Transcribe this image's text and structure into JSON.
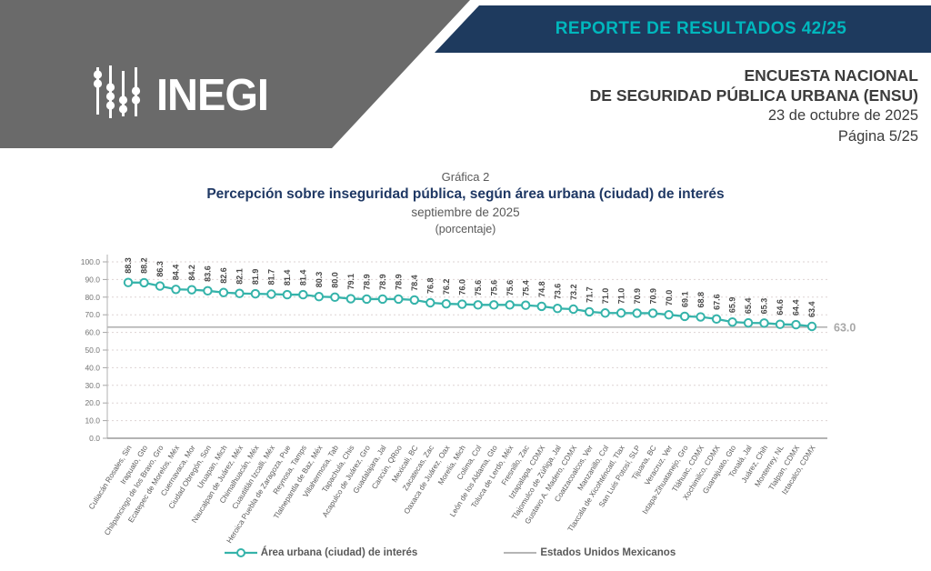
{
  "header": {
    "report_label": "REPORTE DE RESULTADOS 42/25",
    "logo_text": "INEGI",
    "title_line1": "ENCUESTA NACIONAL",
    "title_line2": "DE SEGURIDAD PÚBLICA URBANA (ENSU)",
    "date": "23 de octubre de 2025",
    "page": "Página 5/25"
  },
  "chart_title": {
    "label": "Gráfica 2",
    "title": "Percepción sobre inseguridad pública, según área urbana (ciudad) de interés",
    "subtitle": "septiembre de 2025",
    "unit": "(porcentaje)"
  },
  "colors": {
    "band_gray": "#6a6a6a",
    "banner_navy": "#1e3a5e",
    "banner_teal_text": "#00b7bd",
    "title_blue": "#1f3864",
    "series_teal": "#35b3aa",
    "national_gray": "#b5b5b5"
  },
  "chart_data": {
    "type": "line",
    "series_name": "Área urbana (ciudad) de interés",
    "categories": [
      "Culiacán Rosales, Sin",
      "Irapuato, Gto",
      "Chilpancingo de los Bravo, Gro",
      "Ecatepec de Morelos, Méx",
      "Cuernavaca, Mor",
      "Ciudad Obregón, Son",
      "Uruapan, Mich",
      "Naucalpan de Juárez, Méx",
      "Chimalhuacán, Méx",
      "Cuautitlán Izcalli, Méx",
      "Heroica Puebla de Zaragoza, Pue",
      "Reynosa, Tamps",
      "Tlalnepantla de Baz, Méx",
      "Villahermosa, Tab",
      "Tapachula, Chis",
      "Acapulco de Juárez, Gro",
      "Guadalajara, Jal",
      "Cancún, QRoo",
      "Mexicali, BC",
      "Zacatecas, Zac",
      "Oaxaca de Juárez, Oax",
      "Morelia, Mich",
      "Colima, Col",
      "León de los Aldama, Gto",
      "Toluca de Lerdo, Méx",
      "Fresnillo, Zac",
      "Iztapalapa, CDMX",
      "Tlajomulco de Zúñiga, Jal",
      "Gustavo A. Madero, CDMX",
      "Coatzacoalcos, Ver",
      "Manzanillo, Col",
      "Tlaxcala de Xicohténcatl, Tlax",
      "San Luis Potosí, SLP",
      "Tijuana, BC",
      "Veracruz, Ver",
      "Ixtapa-Zihuatanejo, Gro",
      "Tláhuac, CDMX",
      "Xochimilco, CDMX",
      "Guanajuato, Gto",
      "Tonalá, Jal",
      "Juárez, Chih",
      "Monterrey, NL",
      "Tlalpan, CDMX",
      "Iztacalco, CDMX"
    ],
    "values": [
      88.3,
      88.2,
      86.3,
      84.4,
      84.2,
      83.6,
      82.6,
      82.1,
      81.9,
      81.7,
      81.4,
      81.4,
      80.3,
      80.0,
      79.1,
      78.9,
      78.9,
      78.9,
      78.4,
      76.8,
      76.2,
      76.0,
      75.6,
      75.6,
      75.6,
      75.4,
      74.8,
      73.6,
      73.2,
      71.7,
      71.0,
      71.0,
      70.9,
      70.9,
      70.0,
      69.1,
      68.8,
      67.6,
      65.9,
      65.4,
      65.3,
      64.6,
      64.4,
      63.4
    ],
    "national": {
      "label": "Estados Unidos Mexicanos",
      "value": 63.0
    },
    "ylim": [
      0,
      100
    ],
    "ytick_step": 10,
    "grid": true,
    "legend_position": "bottom",
    "xlabel": "",
    "ylabel": ""
  },
  "legend": {
    "series_label": "Área urbana (ciudad) de interés",
    "national_label": "Estados Unidos Mexicanos"
  }
}
